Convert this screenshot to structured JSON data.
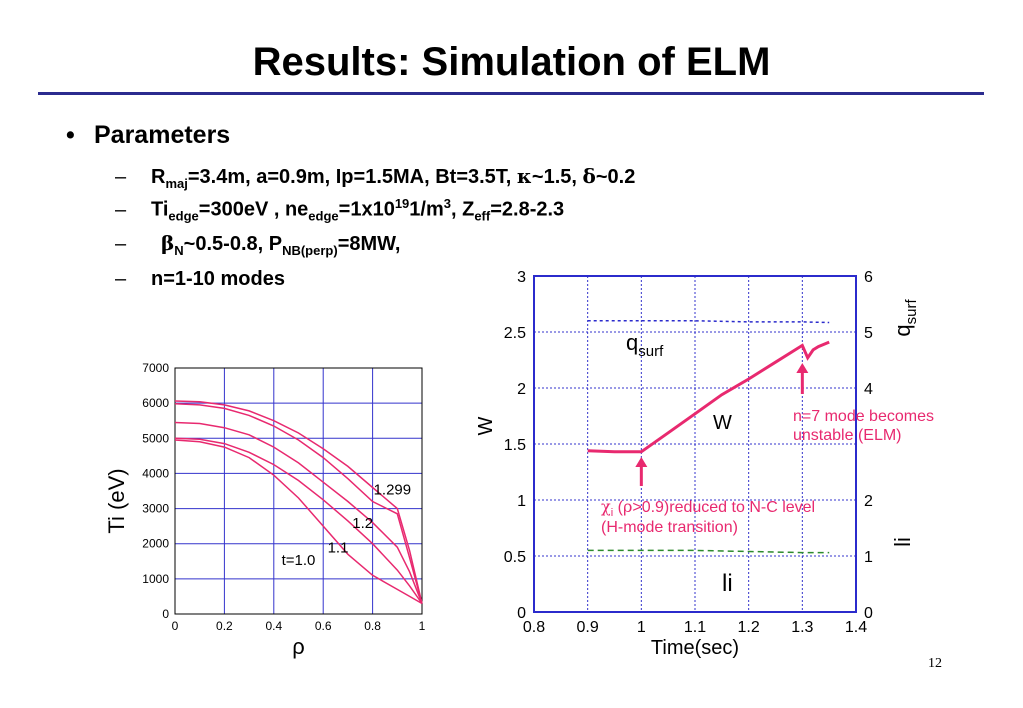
{
  "slide": {
    "title": "Results: Simulation of ELM",
    "page_number": "12",
    "bullet": "Parameters",
    "line1": {
      "r": "R",
      "r_sub": "maj",
      "rest_a": "=3.4m, a=0.9m, Ip=1.5MA, Bt=3.5T, ",
      "kappa": "κ",
      "rest_b": "~1.5, ",
      "delta": "δ",
      "rest_c": "~0.2"
    },
    "line2": {
      "ti": "Ti",
      "ti_sub": "edge",
      "a": "=300eV , ne",
      "ne_sub": "edge",
      "b": "=1x10",
      "exp": "19",
      "c": "1/m",
      "exp2": "3",
      "d": ", Z",
      "z_sub": "eff",
      "e": "=2.8-2.3"
    },
    "line3": {
      "beta": "β",
      "beta_sub": "N",
      "a": "~0.5-0.8, P",
      "p_sub": "NB(perp)",
      "b": "=8MW,"
    },
    "line4": "n=1-10 modes",
    "colors": {
      "curve": "#e8296f",
      "axis": "#2b2bcc",
      "grid": "#3333cc",
      "li": "#2e8b2e",
      "annotation": "#e8296f"
    }
  },
  "chart_data": [
    {
      "type": "line",
      "ylabel": "Ti (eV)",
      "xlabel": "ρ",
      "xlim": [
        0,
        1
      ],
      "ylim": [
        0,
        7000
      ],
      "xticks": [
        "0",
        "0.2",
        "0.4",
        "0.6",
        "0.8",
        "1"
      ],
      "yticks": [
        "0",
        "1000",
        "2000",
        "3000",
        "4000",
        "5000",
        "6000",
        "7000"
      ],
      "grid": true,
      "annotations": [
        {
          "text": "1.299",
          "x": 0.88,
          "y": 3400
        },
        {
          "text": "1.2",
          "x": 0.76,
          "y": 2450
        },
        {
          "text": "1.1",
          "x": 0.66,
          "y": 1750
        },
        {
          "text": "t=1.0",
          "x": 0.5,
          "y": 1400
        }
      ],
      "series": [
        {
          "x": [
            0,
            0.1,
            0.2,
            0.3,
            0.4,
            0.5,
            0.6,
            0.7,
            0.8,
            0.9,
            0.95,
            1.0
          ],
          "values": [
            6060,
            6040,
            5950,
            5780,
            5500,
            5150,
            4700,
            4200,
            3600,
            3000,
            1800,
            300
          ]
        },
        {
          "x": [
            0,
            0.1,
            0.2,
            0.3,
            0.4,
            0.5,
            0.6,
            0.7,
            0.8,
            0.9,
            0.95,
            1.0
          ],
          "values": [
            5980,
            5950,
            5850,
            5650,
            5350,
            4950,
            4450,
            3850,
            3200,
            2850,
            1600,
            300
          ]
        },
        {
          "x": [
            0,
            0.1,
            0.2,
            0.3,
            0.4,
            0.5,
            0.6,
            0.7,
            0.8,
            0.9,
            0.95,
            1.0
          ],
          "values": [
            5450,
            5420,
            5300,
            5100,
            4750,
            4300,
            3750,
            3200,
            2600,
            1900,
            1200,
            300
          ]
        },
        {
          "x": [
            0,
            0.1,
            0.2,
            0.3,
            0.4,
            0.5,
            0.6,
            0.7,
            0.8,
            0.9,
            0.95,
            1.0
          ],
          "values": [
            5000,
            4970,
            4850,
            4600,
            4250,
            3800,
            3250,
            2650,
            2000,
            1250,
            800,
            300
          ]
        },
        {
          "x": [
            0,
            0.1,
            0.2,
            0.3,
            0.4,
            0.5,
            0.6,
            0.7,
            0.8,
            0.9,
            0.95,
            1.0
          ],
          "values": [
            4950,
            4900,
            4750,
            4450,
            3950,
            3300,
            2500,
            1700,
            1100,
            700,
            500,
            300
          ]
        }
      ]
    },
    {
      "type": "line",
      "xlabel": "Time(sec)",
      "ylabel": "W",
      "y2label": "li",
      "y2label_upper": "q",
      "y2label_upper_sub": "surf",
      "xlim": [
        0.8,
        1.4
      ],
      "ylim": [
        0,
        3
      ],
      "y2lim": [
        0,
        6
      ],
      "xticks": [
        "0.8",
        "0.9",
        "1",
        "1.1",
        "1.2",
        "1.3",
        "1.4"
      ],
      "yticks": [
        "0",
        "0.5",
        "1",
        "1.5",
        "2",
        "2.5",
        "3"
      ],
      "y2ticks": [
        "0",
        "1",
        "2",
        "4",
        "5",
        "6"
      ],
      "grid": true,
      "labels": {
        "qsurf": "q",
        "qsurf_sub": "surf",
        "w": "W",
        "li": "li"
      },
      "annotations": {
        "elm": [
          "n=7 mode becomes",
          "unstable (ELM)"
        ],
        "hmode_chi": "χ",
        "hmode_chi_sub": "i",
        "hmode_a": " (",
        "hmode_rho": "ρ",
        "hmode_b": ">0.9)reduced to N-C level",
        "hmode_line2": "(H-mode transition)"
      },
      "series": [
        {
          "name": "W",
          "x": [
            0.9,
            0.95,
            1.0,
            1.05,
            1.1,
            1.15,
            1.2,
            1.25,
            1.3,
            1.31,
            1.32,
            1.33,
            1.35
          ],
          "values": [
            1.44,
            1.43,
            1.43,
            1.6,
            1.77,
            1.94,
            2.08,
            2.23,
            2.38,
            2.27,
            2.34,
            2.37,
            2.41
          ]
        },
        {
          "name": "qsurf",
          "axis": "y2",
          "x": [
            0.9,
            1.0,
            1.1,
            1.2,
            1.3,
            1.35
          ],
          "values": [
            5.2,
            5.2,
            5.2,
            5.18,
            5.18,
            5.17
          ]
        },
        {
          "name": "li",
          "axis": "y2",
          "x": [
            0.9,
            1.0,
            1.1,
            1.2,
            1.3,
            1.35
          ],
          "values": [
            1.1,
            1.1,
            1.1,
            1.08,
            1.06,
            1.06
          ]
        }
      ]
    }
  ]
}
